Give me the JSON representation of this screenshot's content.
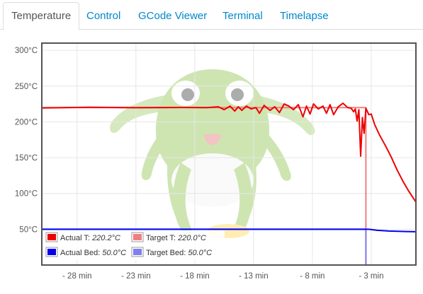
{
  "tabs": [
    {
      "label": "Temperature",
      "active": true
    },
    {
      "label": "Control",
      "active": false
    },
    {
      "label": "GCode Viewer",
      "active": false
    },
    {
      "label": "Terminal",
      "active": false
    },
    {
      "label": "Timelapse",
      "active": false
    }
  ],
  "watermark_icon": "octoprint-octopus-logo-icon",
  "chart_data": {
    "type": "line",
    "title": "",
    "xlabel": "",
    "ylabel": "",
    "xlim": [
      -31,
      0.8
    ],
    "ylim": [
      0,
      310
    ],
    "y_ticks": [
      50,
      100,
      150,
      200,
      250,
      300
    ],
    "y_tick_labels": [
      "50°C",
      "100°C",
      "150°C",
      "200°C",
      "250°C",
      "300°C"
    ],
    "x_ticks": [
      -28,
      -23,
      -18,
      -13,
      -8,
      -3
    ],
    "x_tick_labels": [
      "- 28 min",
      "- 23 min",
      "- 18 min",
      "- 13 min",
      "- 8 min",
      "- 3 min"
    ],
    "grid": true,
    "legend_position": "bottom-left",
    "series": [
      {
        "name": "Actual T",
        "legend_value": "220.2°C",
        "color": "#ee0000",
        "x": [
          -31,
          -27,
          -23,
          -19,
          -17,
          -16,
          -15.5,
          -15,
          -14.6,
          -14.3,
          -14,
          -13.6,
          -13.2,
          -12.8,
          -12.5,
          -12.1,
          -11.6,
          -11.2,
          -10.8,
          -10.4,
          -10,
          -9.6,
          -9.2,
          -8.8,
          -8.5,
          -8.2,
          -7.9,
          -7.5,
          -7.1,
          -6.8,
          -6.5,
          -6.2,
          -5.8,
          -5.4,
          -5,
          -4.7,
          -4.5,
          -4.35,
          -4.2,
          -4.05,
          -3.9,
          -3.75,
          -3.6,
          -3.45,
          -3.2,
          -3,
          -2.7,
          -2.3,
          -1.8,
          -1.3,
          -0.8,
          -0.3,
          0.2,
          0.8
        ],
        "y": [
          219.5,
          220.5,
          219.8,
          220.2,
          219.9,
          221,
          217,
          222,
          215,
          221,
          216,
          222,
          218,
          220,
          212,
          223,
          216,
          221,
          213,
          225,
          222,
          217,
          224,
          207,
          222,
          211,
          225,
          218,
          222,
          212,
          224,
          210,
          221,
          226,
          220,
          219,
          214,
          218,
          201,
          217,
          152,
          206,
          184,
          219,
          210,
          211,
          196,
          182,
          167,
          151,
          133,
          117,
          103,
          88
        ]
      },
      {
        "name": "Target T",
        "legend_value": "220.0°C",
        "color": "#f08080",
        "x": [
          -31,
          -3.45,
          -3.45,
          0.8
        ],
        "y": [
          220,
          220,
          0,
          0
        ]
      },
      {
        "name": "Actual Bed",
        "legend_value": "50.0°C",
        "color": "#0000ee",
        "x": [
          -31,
          -3.2,
          -2.5,
          -1.5,
          0,
          0.8
        ],
        "y": [
          50,
          50,
          48.5,
          47.5,
          46.8,
          46.5
        ]
      },
      {
        "name": "Target Bed",
        "legend_value": "50.0°C",
        "color": "#8080f0",
        "x": [
          -31,
          -3.45,
          -3.45,
          0.8
        ],
        "y": [
          50,
          50,
          0,
          0
        ]
      }
    ]
  }
}
